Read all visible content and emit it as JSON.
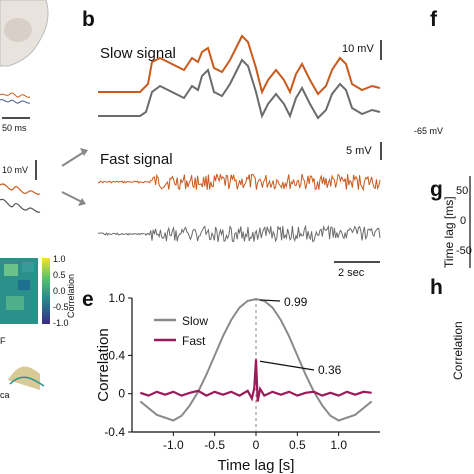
{
  "panels": {
    "b": {
      "letter": "b",
      "slow_title": "Slow signal",
      "fast_title": "Fast signal",
      "slow_scale": "10 mV",
      "fast_scale": "5 mV",
      "time_scale": "2 sec",
      "colors": {
        "orange": "#c85a1e",
        "gray": "#6b6b6b"
      }
    },
    "e": {
      "letter": "e",
      "slow_peak_label": "0.99",
      "fast_peak_label": "0.36"
    },
    "left_strip": {
      "scale_50ms": "50 ms",
      "scale_10mv": "10 mV",
      "colorbar_label": "Correlation",
      "colorbar_ticks": [
        "1.0",
        "0.5",
        "0.0",
        "-0.5",
        "-1.0"
      ],
      "label_ca": "ca",
      "label_f": "F"
    },
    "right_strip": {
      "letter_f": "f",
      "letter_g": "g",
      "letter_h": "h",
      "voltage_label": "-65 mV",
      "g_axis_label": "Time lag [ms]",
      "g_ticks": [
        "50",
        "0",
        "-50"
      ],
      "h_axis_label": "Correlation"
    }
  },
  "chart_data": {
    "type": "line",
    "title": "",
    "xlabel": "Time lag [s]",
    "ylabel": "Correlation",
    "xlim": [
      -1.5,
      1.5
    ],
    "ylim": [
      -0.4,
      1.0
    ],
    "x_ticks": [
      "-1.0",
      "-0.5",
      "0",
      "0.5",
      "1.0"
    ],
    "y_ticks": [
      "1.0",
      "0.4",
      "0",
      "-0.4"
    ],
    "legend": {
      "placement": "top-left",
      "entries": [
        "Slow",
        "Fast"
      ]
    },
    "series": [
      {
        "name": "Slow",
        "color": "#8a8a8a",
        "x": [
          -1.4,
          -1.2,
          -1.0,
          -0.9,
          -0.8,
          -0.7,
          -0.6,
          -0.5,
          -0.4,
          -0.3,
          -0.2,
          -0.1,
          0.0,
          0.1,
          0.2,
          0.3,
          0.4,
          0.5,
          0.6,
          0.7,
          0.8,
          0.9,
          1.0,
          1.2,
          1.4
        ],
        "values": [
          -0.08,
          -0.22,
          -0.28,
          -0.23,
          -0.12,
          0.02,
          0.2,
          0.4,
          0.6,
          0.77,
          0.9,
          0.97,
          0.99,
          0.97,
          0.9,
          0.77,
          0.6,
          0.4,
          0.2,
          0.02,
          -0.12,
          -0.23,
          -0.28,
          -0.22,
          -0.08
        ]
      },
      {
        "name": "Fast",
        "color": "#9b1b5a",
        "x": [
          -1.4,
          -1.3,
          -1.2,
          -1.1,
          -1.0,
          -0.9,
          -0.8,
          -0.7,
          -0.6,
          -0.5,
          -0.4,
          -0.3,
          -0.2,
          -0.1,
          -0.05,
          -0.02,
          0.0,
          0.02,
          0.05,
          0.1,
          0.2,
          0.3,
          0.4,
          0.5,
          0.6,
          0.7,
          0.8,
          0.9,
          1.0,
          1.1,
          1.2,
          1.3,
          1.4
        ],
        "values": [
          0.01,
          -0.02,
          0.02,
          -0.01,
          0.02,
          -0.02,
          0.01,
          0.03,
          -0.02,
          0.02,
          -0.01,
          0.02,
          -0.02,
          0.03,
          -0.05,
          0.06,
          0.36,
          -0.08,
          0.05,
          -0.02,
          0.02,
          -0.01,
          0.02,
          -0.02,
          0.01,
          0.02,
          -0.02,
          0.01,
          -0.02,
          0.02,
          -0.01,
          0.02,
          0.01
        ]
      }
    ],
    "annotations": [
      {
        "text": "0.99",
        "x": 0.0,
        "y": 0.99
      },
      {
        "text": "0.36",
        "x": 0.0,
        "y": 0.36
      }
    ]
  }
}
